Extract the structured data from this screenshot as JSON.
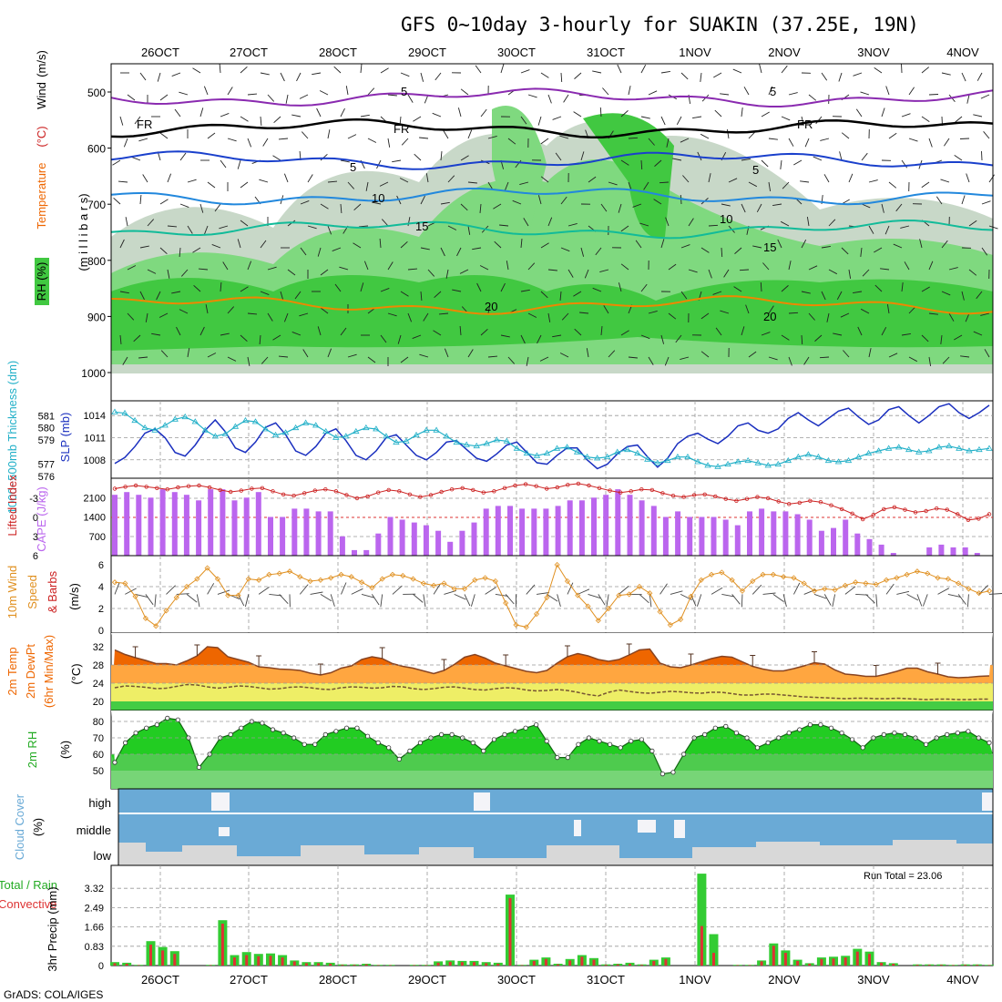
{
  "title": "GFS 0~10day 3-hourly for SUAKIN (37.25E, 19N)",
  "credit": "GrADS: COLA/IGES",
  "run_total": "Run Total = 23.06",
  "colors": {
    "rh_dark": "#1e9e1e",
    "rh_mid": "#41c841",
    "rh_light": "#7fd97f",
    "rh_pale": "#c8d8c8",
    "cape": "#bb66ee",
    "lifted": "#cc2222",
    "slp": "#1a2fbf",
    "thickness": "#22b0c8",
    "wind": "#e09020",
    "temp": "#ee6600",
    "dewpt": "#eeee66",
    "cloud": "#6aaad6",
    "cloud_bg": "#d8d8d8",
    "rain": "#33cc33",
    "convective": "#dd3333"
  },
  "chart_data": [
    {
      "type": "heatmap",
      "name_label": "upper-air",
      "ylabel_parts": [
        "RH (%)",
        "Temperature",
        "(°C)",
        "Wind",
        "(m/s)"
      ],
      "ylabel2": "(m i l l i b a r s)",
      "x_dates": [
        "26OCT",
        "27OCT",
        "28OCT",
        "29OCT",
        "30OCT",
        "31OCT",
        "1NOV",
        "2NOV",
        "3NOV",
        "4NOV"
      ],
      "y_ticks": [
        500,
        600,
        700,
        800,
        900,
        1000
      ],
      "ylim": [
        450,
        1000
      ],
      "isotherms": [
        {
          "label": "5",
          "color": "#8a2ab0",
          "level": 510
        },
        {
          "label": "FR",
          "color": "#000000",
          "level": 565
        },
        {
          "label": "5",
          "color": "#1a40cc",
          "level": 622
        },
        {
          "label": "10",
          "color": "#2288dd",
          "level": 685
        },
        {
          "label": "15",
          "color": "#11bb99",
          "level": 745
        },
        {
          "label": "20",
          "color": "#ee8800",
          "level": 880
        }
      ],
      "contour_labels": [
        "5",
        "5",
        "FR",
        "FR",
        "FR",
        "5",
        "5",
        "10",
        "10",
        "15",
        "15",
        "20",
        "20"
      ]
    },
    {
      "type": "line",
      "name_label": "thickness-slp",
      "ylabel": "1000~500mb Thickness (dm)",
      "ylabel2": "SLP (mb)",
      "y_ticks_left": [
        576,
        577,
        579,
        580,
        581
      ],
      "y_ticks_right": [
        1008,
        1011,
        1014
      ],
      "ylim_left": [
        576,
        582
      ],
      "ylim_right": [
        1005.5,
        1016
      ],
      "series": [
        {
          "name": "SLP (mb)",
          "values": [
            1007.5,
            1008.3,
            1009.8,
            1011.6,
            1012.2,
            1011.0,
            1009.0,
            1008.5,
            1010.0,
            1012.0,
            1013.4,
            1011.8,
            1009.6,
            1009.0,
            1010.4,
            1012.4,
            1013.0,
            1011.4,
            1009.2,
            1008.6,
            1009.8,
            1011.6,
            1012.2,
            1010.6,
            1008.6,
            1008.0,
            1009.2,
            1011.0,
            1011.4,
            1010.0,
            1008.6,
            1008.0,
            1009.0,
            1010.4,
            1010.6,
            1009.4,
            1008.2,
            1007.8,
            1008.8,
            1010.0,
            1010.4,
            1009.0,
            1007.6,
            1007.4,
            1008.6,
            1009.6,
            1009.6,
            1008.0,
            1006.8,
            1007.4,
            1008.8,
            1009.8,
            1010.0,
            1008.4,
            1007.0,
            1008.2,
            1010.2,
            1011.2,
            1011.6,
            1010.8,
            1010.2,
            1011.2,
            1012.6,
            1013.0,
            1012.0,
            1011.6,
            1012.2,
            1013.6,
            1014.4,
            1013.4,
            1012.6,
            1013.6,
            1014.6,
            1015.0,
            1013.8,
            1012.8,
            1013.4,
            1014.8,
            1015.2,
            1014.0,
            1013.0,
            1014.0,
            1015.2,
            1015.6,
            1014.4,
            1013.6,
            1014.4,
            1015.4
          ]
        },
        {
          "name": "1000-500mb Thickness (dm)",
          "values": [
            581.3,
            581.2,
            580.6,
            580.0,
            579.8,
            580.2,
            580.7,
            580.9,
            580.5,
            579.8,
            579.3,
            579.5,
            580.1,
            580.6,
            580.5,
            579.9,
            579.4,
            579.6,
            580.0,
            580.4,
            580.2,
            579.7,
            579.2,
            579.3,
            579.7,
            580.0,
            579.9,
            579.3,
            578.8,
            578.9,
            579.4,
            579.8,
            579.8,
            579.3,
            578.8,
            578.6,
            578.5,
            578.7,
            579.0,
            578.9,
            578.3,
            577.9,
            577.7,
            577.9,
            578.3,
            578.4,
            578.0,
            577.6,
            577.5,
            577.6,
            578.0,
            578.2,
            577.9,
            577.4,
            577.1,
            577.3,
            577.6,
            577.6,
            577.2,
            576.9,
            576.8,
            577.0,
            577.2,
            577.3,
            577.1,
            576.9,
            577.0,
            577.3,
            577.6,
            577.8,
            577.6,
            577.3,
            577.2,
            577.3,
            577.6,
            577.9,
            578.1,
            578.3,
            578.4,
            578.2,
            578.0,
            578.1,
            578.4,
            578.5,
            578.3,
            578.1,
            578.2,
            578.3
          ]
        }
      ]
    },
    {
      "type": "bar",
      "name_label": "cape-li",
      "ylabel": "Lifted Index",
      "ylabel2": "CAPE (J/kg)",
      "y_ticks_left": [
        -3,
        0,
        3,
        6
      ],
      "y_ticks_right": [
        700,
        1400,
        2100
      ],
      "ylim_cape": [
        0,
        2800
      ],
      "ylim_li": [
        6,
        -6
      ],
      "series": [
        {
          "name": "CAPE (J/kg)",
          "values": [
            2200,
            2300,
            2200,
            2100,
            2400,
            2300,
            2200,
            2000,
            2400,
            2400,
            2000,
            2100,
            2300,
            1400,
            1400,
            1700,
            1700,
            1600,
            1600,
            700,
            200,
            200,
            800,
            1400,
            1300,
            1200,
            1100,
            900,
            500,
            900,
            1200,
            1700,
            1800,
            1800,
            1700,
            1700,
            1700,
            1800,
            2000,
            2000,
            2100,
            2200,
            2400,
            2200,
            2000,
            1800,
            1400,
            1600,
            1400,
            1400,
            1400,
            1300,
            1100,
            1600,
            1700,
            1600,
            1600,
            1500,
            1300,
            900,
            1000,
            1300,
            800,
            600,
            400,
            100,
            0,
            0,
            300,
            400,
            300,
            300,
            100,
            0
          ]
        },
        {
          "name": "Lifted Index",
          "values": [
            -4.5,
            -4.8,
            -5.0,
            -4.8,
            -4.6,
            -4.4,
            -4.7,
            -4.9,
            -5.0,
            -4.7,
            -4.3,
            -4.0,
            -4.2,
            -4.5,
            -4.6,
            -4.1,
            -3.6,
            -3.4,
            -3.8,
            -4.2,
            -4.4,
            -4.1,
            -3.5,
            -3.0,
            -3.3,
            -3.9,
            -4.3,
            -4.1,
            -3.6,
            -3.2,
            -3.5,
            -4.0,
            -4.4,
            -4.6,
            -4.3,
            -3.9,
            -4.1,
            -4.6,
            -5.0,
            -5.2,
            -4.9,
            -4.5,
            -4.7,
            -5.1,
            -5.3,
            -5.0,
            -4.6,
            -4.2,
            -3.9,
            -4.1,
            -4.4,
            -4.3,
            -3.8,
            -3.4,
            -3.2,
            -3.5,
            -3.6,
            -3.3,
            -2.9,
            -2.6,
            -2.9,
            -3.2,
            -3.0,
            -2.5,
            -2.1,
            -2.3,
            -2.6,
            -2.4,
            -1.9,
            -1.3,
            -0.6,
            0.3,
            -0.4,
            -1.3,
            -1.6,
            -1.2,
            -0.8,
            -1.0,
            -1.4,
            -1.2,
            -0.5,
            0.4,
            0.2,
            -0.5
          ]
        }
      ]
    },
    {
      "type": "line",
      "name_label": "wind10m",
      "ylabel": "10m Wind",
      "ylabel2": "Speed",
      "ylabel3": "& Barbs",
      "yunit": "(m/s)",
      "y_ticks": [
        0,
        2,
        4,
        6
      ],
      "ylim": [
        0,
        6.6
      ],
      "series": [
        {
          "name": "Speed",
          "values": [
            4.4,
            4.3,
            3.1,
            1.1,
            0.4,
            1.8,
            3.0,
            4.0,
            4.7,
            5.7,
            4.7,
            3.2,
            3.2,
            4.7,
            4.6,
            5.1,
            5.2,
            5.4,
            4.9,
            4.5,
            4.6,
            4.8,
            5.1,
            4.9,
            4.4,
            3.9,
            4.7,
            5.1,
            5.0,
            4.7,
            4.3,
            4.1,
            4.3,
            3.8,
            3.8,
            4.6,
            4.8,
            4.5,
            2.5,
            0.5,
            0.3,
            1.5,
            3.0,
            6.0,
            4.5,
            3.2,
            2.2,
            0.9,
            2.0,
            3.2,
            3.3,
            4.0,
            3.4,
            1.7,
            0.5,
            1.0,
            3.1,
            4.6,
            5.1,
            5.3,
            4.6,
            3.6,
            4.5,
            5.1,
            5.1,
            4.9,
            4.8,
            4.3,
            3.6,
            3.8,
            3.7,
            4.1,
            4.4,
            4.3,
            4.2,
            4.6,
            4.8,
            5.1,
            5.4,
            5.2,
            4.8,
            4.7,
            4.3,
            3.8,
            3.4,
            3.6
          ]
        }
      ]
    },
    {
      "type": "area",
      "name_label": "temp2m",
      "ylabel": "2m Temp",
      "ylabel2": "2m DewPt",
      "ylabel3": "(6hr Min/Max)",
      "yunit": "(°C)",
      "y_ticks": [
        20,
        24,
        28,
        32
      ],
      "ylim": [
        18.5,
        34
      ],
      "series": [
        {
          "name": "2m Temp",
          "values": [
            31.3,
            30.3,
            29.6,
            29.0,
            28.3,
            28.3,
            28.0,
            28.9,
            30.0,
            32.0,
            31.8,
            29.8,
            29.2,
            28.6,
            27.6,
            27.4,
            27.1,
            27.0,
            26.8,
            26.2,
            25.8,
            26.3,
            27.3,
            27.8,
            29.2,
            29.8,
            29.4,
            28.3,
            27.7,
            27.3,
            26.7,
            26.1,
            26.8,
            28.1,
            29.7,
            30.3,
            29.5,
            28.4,
            27.8,
            27.2,
            26.6,
            26.3,
            26.8,
            28.4,
            29.8,
            30.5,
            30.0,
            29.2,
            28.8,
            29.2,
            30.2,
            31.3,
            31.5,
            28.4,
            27.6,
            27.4,
            28.0,
            28.7,
            29.4,
            29.9,
            29.7,
            28.7,
            27.7,
            27.1,
            26.7,
            26.7,
            27.2,
            27.8,
            28.5,
            28.2,
            26.9,
            26.0,
            25.8,
            25.5,
            25.5,
            26.0,
            26.6,
            27.3,
            27.3,
            26.5,
            26.0,
            25.4,
            25.2,
            25.3,
            25.5,
            25.6
          ]
        },
        {
          "name": "2m DewPt",
          "values": [
            23.0,
            23.4,
            23.3,
            23.1,
            22.8,
            22.9,
            23.3,
            23.7,
            23.6,
            23.2,
            22.9,
            23.1,
            23.4,
            23.3,
            23.0,
            22.7,
            22.8,
            23.1,
            23.2,
            23.0,
            22.7,
            22.6,
            23.0,
            23.2,
            23.1,
            22.9,
            23.0,
            23.3,
            23.2,
            22.8,
            22.6,
            22.8,
            23.1,
            23.2,
            22.9,
            22.6,
            22.5,
            22.8,
            23.0,
            22.9,
            22.5,
            22.3,
            22.4,
            22.6,
            22.4,
            22.0,
            21.5,
            21.2,
            22.0,
            22.5,
            22.2,
            21.9,
            21.8,
            22.0,
            22.2,
            22.1,
            21.9,
            21.8,
            22.0,
            22.0,
            21.7,
            21.4,
            21.4,
            21.6,
            21.6,
            21.4,
            21.2,
            21.0,
            20.9,
            20.8,
            20.7,
            20.6,
            20.7,
            20.7,
            20.6,
            20.6,
            20.7,
            20.6,
            20.5,
            20.4,
            20.5,
            20.5,
            20.4,
            20.4,
            20.5,
            20.5
          ]
        }
      ]
    },
    {
      "type": "area",
      "name_label": "rh2m",
      "ylabel": "2m RH",
      "yunit": "(%)",
      "y_ticks": [
        50,
        60,
        70,
        80
      ],
      "ylim": [
        42,
        85
      ],
      "series": [
        {
          "name": "2m RH",
          "values": [
            55,
            67,
            73,
            76,
            78,
            82,
            81,
            70,
            52,
            60,
            70,
            72,
            76,
            80,
            79,
            75,
            73,
            70,
            66,
            66,
            72,
            74,
            76,
            76,
            71,
            67,
            64,
            57,
            62,
            67,
            70,
            72,
            72,
            70,
            67,
            62,
            69,
            72,
            74,
            76,
            78,
            68,
            58,
            58,
            66,
            70,
            68,
            66,
            64,
            68,
            69,
            62,
            48,
            49,
            60,
            70,
            72,
            76,
            77,
            73,
            70,
            64,
            67,
            70,
            73,
            75,
            78,
            78,
            76,
            73,
            69,
            64,
            70,
            72,
            73,
            72,
            70,
            66,
            70,
            72,
            73,
            74,
            70,
            67
          ]
        }
      ]
    },
    {
      "type": "area",
      "name_label": "cloud",
      "ylabel": "Cloud Cover",
      "yunit": "(%)",
      "layers": [
        "high",
        "middle",
        "low"
      ]
    },
    {
      "type": "bar",
      "name_label": "precip",
      "ylabel": "Total / Rain",
      "ylabel2": "Convective",
      "yunit": "3hr Precip (mm)",
      "y_ticks": [
        0,
        0.83,
        1.66,
        2.49,
        3.32
      ],
      "ylim": [
        0,
        4.15
      ],
      "series": [
        {
          "name": "Total",
          "values": [
            0.15,
            0.12,
            0.03,
            1.05,
            0.8,
            0.62,
            0,
            0,
            0.03,
            1.95,
            0.45,
            0.58,
            0.5,
            0.52,
            0.45,
            0.22,
            0.15,
            0.15,
            0.12,
            0.05,
            0.05,
            0.08,
            0.03,
            0.03,
            0,
            0.03,
            0.03,
            0.18,
            0.22,
            0.2,
            0.2,
            0.15,
            0.12,
            3.05,
            0.03,
            0.25,
            0.35,
            0.08,
            0.28,
            0.45,
            0.32,
            0.05,
            0.08,
            0.12,
            0.05,
            0.25,
            0.35,
            0,
            0,
            3.95,
            1.35,
            0,
            0.03,
            0.03,
            0.22,
            0.95,
            0.65,
            0.25,
            0.1,
            0.35,
            0.38,
            0.42,
            0.72,
            0.6,
            0.15,
            0.1,
            0,
            0.05,
            0.05,
            0.05,
            0.03,
            0.05,
            0.05,
            0.03
          ]
        },
        {
          "name": "Convective",
          "values": [
            0.1,
            0.08,
            0.02,
            0.9,
            0.65,
            0.5,
            0,
            0,
            0.02,
            1.8,
            0.35,
            0.45,
            0.4,
            0.42,
            0.35,
            0.18,
            0.1,
            0.1,
            0.08,
            0.03,
            0.03,
            0.05,
            0.02,
            0.02,
            0,
            0.02,
            0.02,
            0.12,
            0.16,
            0.15,
            0.15,
            0.1,
            0.08,
            2.9,
            0.02,
            0.2,
            0.28,
            0.05,
            0.22,
            0.38,
            0.25,
            0.03,
            0.05,
            0.08,
            0.03,
            0.2,
            0.28,
            0,
            0,
            1.7,
            0.55,
            0,
            0.02,
            0.02,
            0.18,
            0.85,
            0.55,
            0.2,
            0.08,
            0.28,
            0.3,
            0.35,
            0.6,
            0.5,
            0.12,
            0.08,
            0,
            0.03,
            0.03,
            0.03,
            0.02,
            0.03,
            0.03,
            0.02
          ]
        }
      ]
    }
  ]
}
